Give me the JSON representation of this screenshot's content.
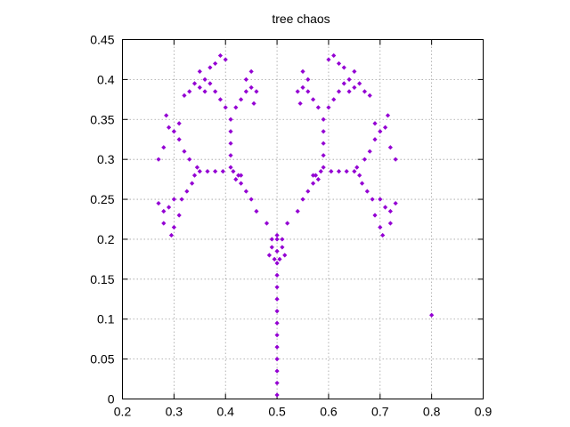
{
  "chart_data": {
    "type": "scatter",
    "title": "tree chaos",
    "xlabel": "",
    "ylabel": "",
    "xlim": [
      0.2,
      0.9
    ],
    "ylim": [
      0,
      0.45
    ],
    "x_ticks": [
      "0.2",
      "0.3",
      "0.4",
      "0.5",
      "0.6",
      "0.7",
      "0.8",
      "0.9"
    ],
    "y_ticks": [
      "0",
      "0.05",
      "0.1",
      "0.15",
      "0.2",
      "0.25",
      "0.3",
      "0.35",
      "0.4",
      "0.45"
    ],
    "grid": true,
    "legend": "none",
    "marker_color": "#9400d3",
    "marker": "diamond",
    "series": [
      {
        "points": [
          [
            0.8,
            0.105
          ],
          [
            0.5,
            0.005
          ],
          [
            0.5,
            0.02
          ],
          [
            0.5,
            0.035
          ],
          [
            0.5,
            0.05
          ],
          [
            0.5,
            0.065
          ],
          [
            0.5,
            0.08
          ],
          [
            0.5,
            0.095
          ],
          [
            0.5,
            0.11
          ],
          [
            0.5,
            0.125
          ],
          [
            0.5,
            0.14
          ],
          [
            0.5,
            0.155
          ],
          [
            0.5,
            0.17
          ],
          [
            0.5,
            0.185
          ],
          [
            0.5,
            0.2
          ],
          [
            0.49,
            0.19
          ],
          [
            0.51,
            0.19
          ],
          [
            0.485,
            0.18
          ],
          [
            0.515,
            0.18
          ],
          [
            0.495,
            0.175
          ],
          [
            0.505,
            0.175
          ],
          [
            0.5,
            0.205
          ],
          [
            0.49,
            0.2
          ],
          [
            0.51,
            0.2
          ],
          [
            0.48,
            0.22
          ],
          [
            0.46,
            0.235
          ],
          [
            0.45,
            0.25
          ],
          [
            0.44,
            0.26
          ],
          [
            0.43,
            0.27
          ],
          [
            0.425,
            0.28
          ],
          [
            0.52,
            0.22
          ],
          [
            0.54,
            0.235
          ],
          [
            0.55,
            0.25
          ],
          [
            0.56,
            0.26
          ],
          [
            0.57,
            0.27
          ],
          [
            0.575,
            0.28
          ],
          [
            0.42,
            0.275
          ],
          [
            0.43,
            0.28
          ],
          [
            0.415,
            0.285
          ],
          [
            0.58,
            0.275
          ],
          [
            0.57,
            0.28
          ],
          [
            0.585,
            0.285
          ],
          [
            0.41,
            0.29
          ],
          [
            0.41,
            0.305
          ],
          [
            0.41,
            0.32
          ],
          [
            0.41,
            0.335
          ],
          [
            0.41,
            0.35
          ],
          [
            0.59,
            0.29
          ],
          [
            0.59,
            0.305
          ],
          [
            0.59,
            0.32
          ],
          [
            0.59,
            0.335
          ],
          [
            0.59,
            0.35
          ],
          [
            0.395,
            0.285
          ],
          [
            0.38,
            0.285
          ],
          [
            0.365,
            0.285
          ],
          [
            0.35,
            0.285
          ],
          [
            0.605,
            0.285
          ],
          [
            0.62,
            0.285
          ],
          [
            0.635,
            0.285
          ],
          [
            0.65,
            0.285
          ],
          [
            0.345,
            0.29
          ],
          [
            0.34,
            0.28
          ],
          [
            0.33,
            0.3
          ],
          [
            0.32,
            0.31
          ],
          [
            0.31,
            0.325
          ],
          [
            0.3,
            0.335
          ],
          [
            0.335,
            0.27
          ],
          [
            0.325,
            0.26
          ],
          [
            0.315,
            0.25
          ],
          [
            0.3,
            0.25
          ],
          [
            0.29,
            0.24
          ],
          [
            0.28,
            0.235
          ],
          [
            0.655,
            0.29
          ],
          [
            0.66,
            0.28
          ],
          [
            0.67,
            0.3
          ],
          [
            0.68,
            0.31
          ],
          [
            0.69,
            0.325
          ],
          [
            0.7,
            0.335
          ],
          [
            0.665,
            0.27
          ],
          [
            0.675,
            0.26
          ],
          [
            0.685,
            0.25
          ],
          [
            0.7,
            0.25
          ],
          [
            0.71,
            0.24
          ],
          [
            0.72,
            0.235
          ],
          [
            0.28,
            0.315
          ],
          [
            0.27,
            0.3
          ],
          [
            0.29,
            0.34
          ],
          [
            0.285,
            0.355
          ],
          [
            0.31,
            0.345
          ],
          [
            0.72,
            0.315
          ],
          [
            0.73,
            0.3
          ],
          [
            0.71,
            0.34
          ],
          [
            0.715,
            0.355
          ],
          [
            0.69,
            0.345
          ],
          [
            0.27,
            0.245
          ],
          [
            0.28,
            0.22
          ],
          [
            0.3,
            0.215
          ],
          [
            0.31,
            0.23
          ],
          [
            0.295,
            0.205
          ],
          [
            0.73,
            0.245
          ],
          [
            0.72,
            0.22
          ],
          [
            0.7,
            0.215
          ],
          [
            0.69,
            0.23
          ],
          [
            0.705,
            0.205
          ],
          [
            0.4,
            0.365
          ],
          [
            0.39,
            0.375
          ],
          [
            0.38,
            0.385
          ],
          [
            0.37,
            0.395
          ],
          [
            0.36,
            0.4
          ],
          [
            0.42,
            0.365
          ],
          [
            0.43,
            0.375
          ],
          [
            0.44,
            0.385
          ],
          [
            0.45,
            0.39
          ],
          [
            0.6,
            0.365
          ],
          [
            0.61,
            0.375
          ],
          [
            0.62,
            0.385
          ],
          [
            0.63,
            0.395
          ],
          [
            0.64,
            0.4
          ],
          [
            0.58,
            0.365
          ],
          [
            0.57,
            0.375
          ],
          [
            0.56,
            0.385
          ],
          [
            0.55,
            0.39
          ],
          [
            0.36,
            0.385
          ],
          [
            0.35,
            0.39
          ],
          [
            0.34,
            0.395
          ],
          [
            0.33,
            0.385
          ],
          [
            0.32,
            0.38
          ],
          [
            0.64,
            0.385
          ],
          [
            0.65,
            0.39
          ],
          [
            0.66,
            0.395
          ],
          [
            0.67,
            0.385
          ],
          [
            0.68,
            0.38
          ],
          [
            0.37,
            0.415
          ],
          [
            0.38,
            0.42
          ],
          [
            0.39,
            0.43
          ],
          [
            0.4,
            0.425
          ],
          [
            0.35,
            0.41
          ],
          [
            0.63,
            0.415
          ],
          [
            0.62,
            0.42
          ],
          [
            0.61,
            0.43
          ],
          [
            0.6,
            0.425
          ],
          [
            0.65,
            0.41
          ],
          [
            0.44,
            0.4
          ],
          [
            0.45,
            0.41
          ],
          [
            0.46,
            0.385
          ],
          [
            0.455,
            0.37
          ],
          [
            0.56,
            0.4
          ],
          [
            0.55,
            0.41
          ],
          [
            0.54,
            0.385
          ],
          [
            0.545,
            0.37
          ]
        ]
      }
    ]
  }
}
